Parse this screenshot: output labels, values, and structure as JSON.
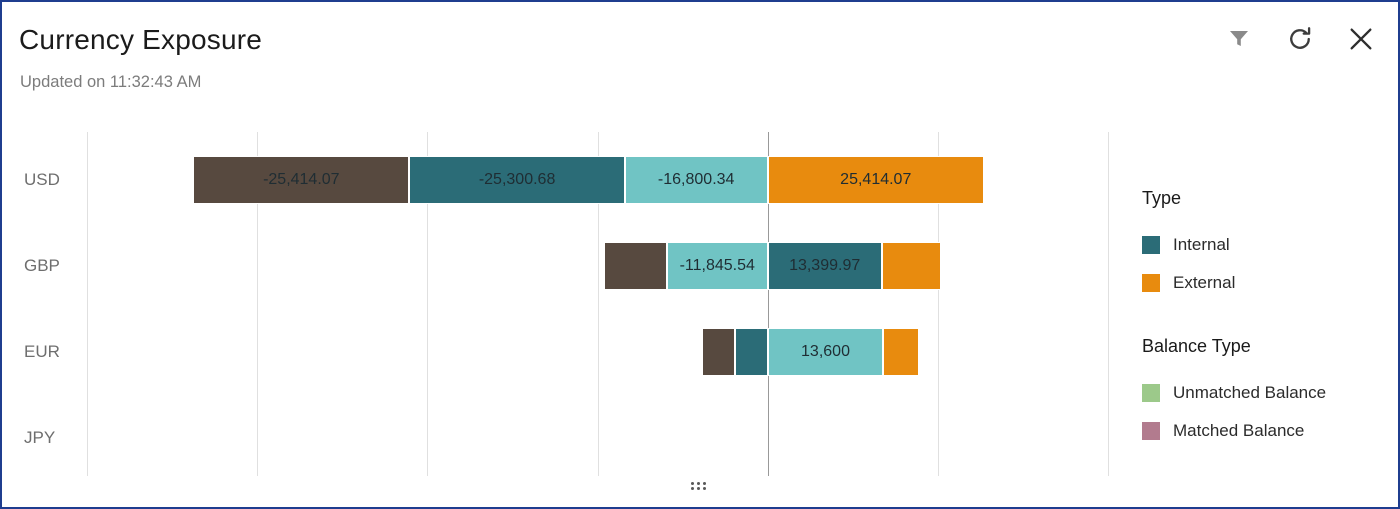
{
  "panel": {
    "title": "Currency Exposure",
    "updated": "Updated on 11:32:43 AM"
  },
  "toolbar": {
    "filter_tooltip": "Filter",
    "refresh_tooltip": "Refresh",
    "close_tooltip": "Close"
  },
  "legend": {
    "type_heading": "Type",
    "type_items": [
      {
        "label": "Internal",
        "color": "#2b6c77"
      },
      {
        "label": "External",
        "color": "#e88b0e"
      }
    ],
    "balance_heading": "Balance Type",
    "balance_items": [
      {
        "label": "Unmatched Balance",
        "color": "#9cc98a"
      },
      {
        "label": "Matched Balance",
        "color": "#b27b8e"
      }
    ]
  },
  "chart_data": {
    "type": "bar",
    "orientation": "horizontal",
    "stacked": true,
    "title": "Currency Exposure",
    "xlabel": "",
    "ylabel": "",
    "categories": [
      "USD",
      "GBP",
      "EUR",
      "JPY"
    ],
    "x_axis": {
      "min": -80000,
      "max": 40000,
      "step": 20000,
      "zero_line": true,
      "tick_labels_visible": false
    },
    "grid": true,
    "legend_position": "right",
    "rows": [
      {
        "currency": "USD",
        "segments": [
          {
            "series": "Matched Balance",
            "color": "#57493f",
            "value": -25414.07,
            "label": "-25,414.07"
          },
          {
            "series": "Internal",
            "color": "#2b6c77",
            "value": -25300.68,
            "label": "-25,300.68"
          },
          {
            "series": "Unmatched Balance",
            "color": "#70c4c4",
            "value": -16800.34,
            "label": "-16,800.34"
          },
          {
            "series": "External",
            "color": "#e88b0e",
            "value": 25414.07,
            "label": "25,414.07"
          }
        ]
      },
      {
        "currency": "GBP",
        "segments": [
          {
            "series": "Matched Balance",
            "color": "#57493f",
            "value": -7400,
            "label": "",
            "estimated": true
          },
          {
            "series": "Unmatched Balance",
            "color": "#70c4c4",
            "value": -11845.54,
            "label": "-11,845.54"
          },
          {
            "series": "Internal",
            "color": "#2b6c77",
            "value": 13399.97,
            "label": "13,399.97"
          },
          {
            "series": "External",
            "color": "#e88b0e",
            "value": 7000,
            "label": "",
            "estimated": true
          }
        ]
      },
      {
        "currency": "EUR",
        "segments": [
          {
            "series": "Matched Balance",
            "color": "#57493f",
            "value": -3900,
            "label": "",
            "estimated": true
          },
          {
            "series": "Internal",
            "color": "#2b6c77",
            "value": -3800,
            "label": "",
            "estimated": true
          },
          {
            "series": "Unmatched Balance",
            "color": "#70c4c4",
            "value": 13600,
            "label": "13,600"
          },
          {
            "series": "External",
            "color": "#e88b0e",
            "value": 4200,
            "label": "",
            "estimated": true
          }
        ]
      },
      {
        "currency": "JPY",
        "segments": []
      }
    ]
  }
}
